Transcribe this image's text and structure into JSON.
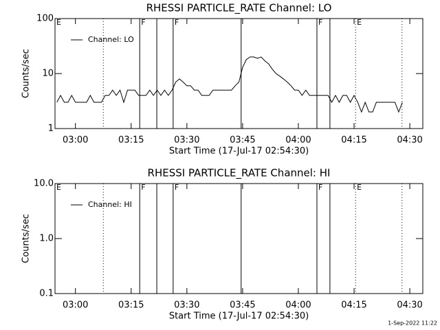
{
  "chart_data": [
    {
      "type": "line",
      "title": "RHESSI PARTICLE_RATE Channel: LO",
      "xlabel": "Start Time (17-Jul-17 02:54:30)",
      "ylabel": "Counts/sec",
      "x": [
        175,
        176,
        177,
        178,
        179,
        180,
        181,
        182,
        183,
        184,
        185,
        186,
        187,
        188,
        189,
        190,
        191,
        192,
        193,
        194,
        195,
        196,
        197,
        198,
        199,
        200,
        201,
        202,
        203,
        204,
        205,
        206,
        207,
        208,
        209,
        210,
        211,
        212,
        213,
        214,
        215,
        216,
        217,
        218,
        219,
        220,
        221,
        222,
        223,
        224,
        225,
        226,
        227,
        228,
        229,
        230,
        231,
        232,
        233,
        234,
        235,
        236,
        237,
        238,
        239,
        240,
        241,
        242,
        243,
        244,
        245,
        246,
        247,
        248,
        249,
        250,
        251,
        252,
        253,
        254,
        255,
        256,
        257,
        258,
        259,
        260,
        261,
        262,
        263,
        264,
        265,
        266,
        267,
        268
      ],
      "series": [
        {
          "name": "Channel: LO",
          "color": "#000000",
          "values": [
            3,
            4,
            3,
            3,
            4,
            3,
            3,
            3,
            3,
            4,
            3,
            3,
            3,
            4,
            4,
            5,
            4,
            5,
            3,
            5,
            5,
            5,
            4,
            4,
            4,
            5,
            4,
            5,
            4,
            5,
            4,
            5,
            7,
            8,
            7,
            6,
            6,
            5,
            5,
            4,
            4,
            4,
            5,
            5,
            5,
            5,
            5,
            5,
            6,
            7,
            13,
            18,
            20,
            20,
            19,
            20,
            17,
            15,
            12,
            10,
            9,
            8,
            7,
            6,
            5,
            5,
            4,
            5,
            4,
            4,
            4,
            4,
            4,
            4,
            3,
            4,
            3,
            4,
            4,
            3,
            4,
            3,
            2,
            3,
            2,
            2,
            3,
            3,
            3,
            3,
            3,
            3,
            2,
            3
          ]
        }
      ],
      "xlim": [
        174.5,
        273.5
      ],
      "xticks": [
        {
          "value": 180,
          "label": "03:00"
        },
        {
          "value": 195,
          "label": "03:15"
        },
        {
          "value": 210,
          "label": "03:30"
        },
        {
          "value": 225,
          "label": "03:45"
        },
        {
          "value": 240,
          "label": "04:00"
        },
        {
          "value": 255,
          "label": "04:15"
        },
        {
          "value": 270,
          "label": "04:30"
        }
      ],
      "ylim": [
        1,
        100
      ],
      "yticks": [
        1,
        10,
        100
      ],
      "log_y": true,
      "legend": "upper left",
      "events": [
        {
          "x": 187.5,
          "style": "dotted"
        },
        {
          "x": 197.3,
          "style": "solid"
        },
        {
          "x": 201.9,
          "style": "solid"
        },
        {
          "x": 206.3,
          "style": "solid"
        },
        {
          "x": 224.6,
          "style": "solid"
        },
        {
          "x": 245.0,
          "style": "solid"
        },
        {
          "x": 248.5,
          "style": "solid"
        },
        {
          "x": 255.4,
          "style": "dotted"
        },
        {
          "x": 267.9,
          "style": "dotted"
        }
      ],
      "annotations": [
        {
          "x": 174.5,
          "text": "E"
        },
        {
          "x": 197.3,
          "text": "F"
        },
        {
          "x": 206.3,
          "text": "F"
        },
        {
          "x": 245.0,
          "text": "F"
        },
        {
          "x": 255.4,
          "text": "E"
        }
      ]
    },
    {
      "type": "line",
      "title": "RHESSI PARTICLE_RATE Channel: HI",
      "xlabel": "Start Time (17-Jul-17 02:54:30)",
      "ylabel": "Counts/sec",
      "x": [],
      "series": [
        {
          "name": "Channel: HI",
          "color": "#000000",
          "values": []
        }
      ],
      "xlim": [
        174.5,
        273.5
      ],
      "xticks": [
        {
          "value": 180,
          "label": "03:00"
        },
        {
          "value": 195,
          "label": "03:15"
        },
        {
          "value": 210,
          "label": "03:30"
        },
        {
          "value": 225,
          "label": "03:45"
        },
        {
          "value": 240,
          "label": "04:00"
        },
        {
          "value": 255,
          "label": "04:15"
        },
        {
          "value": 270,
          "label": "04:30"
        }
      ],
      "ylim": [
        0.1,
        10
      ],
      "yticks": [
        {
          "value": 0.1,
          "label": "0.1"
        },
        {
          "value": 1,
          "label": "1.0"
        },
        {
          "value": 10,
          "label": "10.0"
        }
      ],
      "log_y": true,
      "legend": "upper left",
      "events": [
        {
          "x": 187.5,
          "style": "dotted"
        },
        {
          "x": 197.3,
          "style": "solid"
        },
        {
          "x": 201.9,
          "style": "solid"
        },
        {
          "x": 206.3,
          "style": "solid"
        },
        {
          "x": 224.6,
          "style": "solid"
        },
        {
          "x": 245.0,
          "style": "solid"
        },
        {
          "x": 248.5,
          "style": "solid"
        },
        {
          "x": 255.4,
          "style": "dotted"
        },
        {
          "x": 267.9,
          "style": "dotted"
        }
      ],
      "annotations": [
        {
          "x": 174.5,
          "text": "E"
        },
        {
          "x": 197.3,
          "text": "F"
        },
        {
          "x": 206.3,
          "text": "F"
        },
        {
          "x": 245.0,
          "text": "F"
        },
        {
          "x": 255.4,
          "text": "E"
        }
      ]
    }
  ],
  "footer": "1-Sep-2022 11:22"
}
